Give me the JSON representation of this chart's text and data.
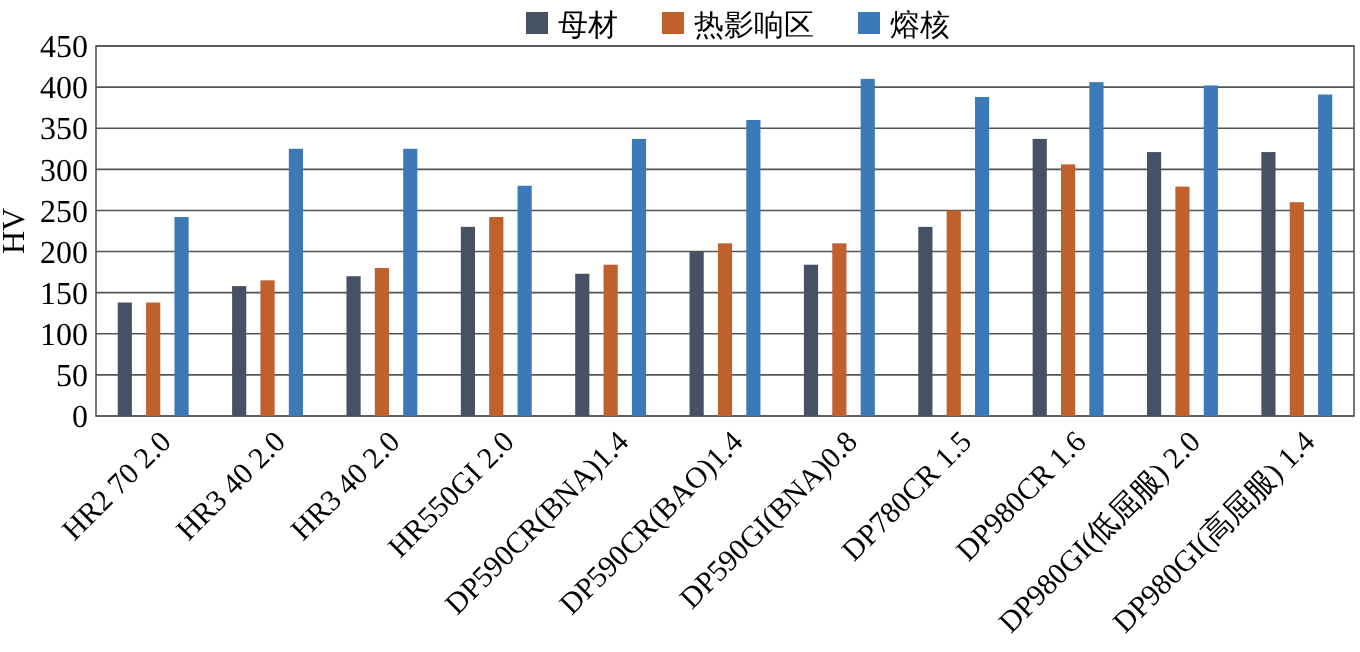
{
  "chart_data": {
    "type": "bar",
    "ylabel": "HV",
    "categories": [
      "HR2 70 2.0",
      "HR3 40 2.0",
      "HR3 40 2.0",
      "HR550GI 2.0",
      "DP590CR(BNA)1.4",
      "DP590CR(BAO)1.4",
      "DP590GI(BNA)0.8",
      "DP780CR 1.5",
      "DP980CR 1.6",
      "DP980GI(低屈服) 2.0",
      "DP980GI(高屈服) 1.4"
    ],
    "series": [
      {
        "name": "母材",
        "color": "#465264",
        "values": [
          138,
          158,
          170,
          230,
          173,
          200,
          184,
          230,
          337,
          321,
          321
        ]
      },
      {
        "name": "热影响区",
        "color": "#c0602c",
        "values": [
          138,
          165,
          180,
          242,
          184,
          210,
          210,
          250,
          306,
          279,
          260
        ]
      },
      {
        "name": "熔核",
        "color": "#3b79b7",
        "values": [
          242,
          325,
          325,
          280,
          337,
          360,
          410,
          388,
          406,
          402,
          391
        ]
      }
    ],
    "ylim": [
      0,
      450
    ],
    "yticks": [
      0,
      50,
      100,
      150,
      200,
      250,
      300,
      350,
      400,
      450
    ],
    "grid": "y",
    "legend": "top"
  }
}
